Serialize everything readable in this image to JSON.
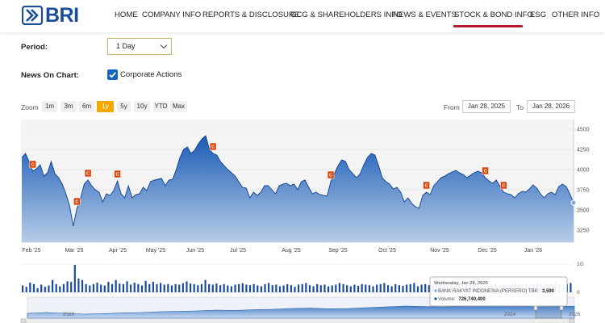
{
  "brand": {
    "name": "BRI",
    "color": "#1b4b9b"
  },
  "nav": {
    "items": [
      {
        "label": "HOME"
      },
      {
        "label": "COMPANY INFO"
      },
      {
        "label": "REPORTS & DISCLOSURE"
      },
      {
        "label": "GCG & SHAREHOLDERS INFO"
      },
      {
        "label": "NEWS & EVENTS"
      },
      {
        "label": "STOCK & BOND INFO",
        "active": true
      },
      {
        "label": "ESG"
      },
      {
        "label": "OTHER INFO"
      }
    ],
    "active_color": "#b71c2c"
  },
  "controls": {
    "period_label": "Period:",
    "period_value": "1 Day",
    "news_label": "News On Chart:",
    "corporate_actions_label": "Corporate Actions",
    "corporate_actions_checked": true
  },
  "zoom": {
    "label": "Zoom",
    "options": [
      "1m",
      "3m",
      "6m",
      "1y",
      "5y",
      "10y",
      "YTD",
      "Max"
    ],
    "active": "1y",
    "active_color": "#f6a800"
  },
  "range": {
    "from_label": "From",
    "from_value": "Jan 28, 2025",
    "to_label": "To",
    "to_value": "Jan 28, 2026"
  },
  "chart_data": {
    "type": "area",
    "y_ticks": [
      "4500",
      "4250",
      "4000",
      "3750",
      "3500",
      "3250"
    ],
    "ylim": [
      3250,
      4500
    ],
    "x_ticks": [
      "Feb '25",
      "Mar '25",
      "Apr '25",
      "May '25",
      "Jun '25",
      "Jul '25",
      "Aug '25",
      "Sep '25",
      "Oct '25",
      "Nov '25",
      "Dec '25",
      "Jan '26"
    ],
    "series": [
      {
        "values": [
          4150,
          4200,
          4100,
          3980,
          4010,
          4060,
          3920,
          3960,
          4100,
          3950,
          3900,
          3820,
          3700,
          3550,
          3300,
          3520,
          3650,
          3820,
          3870,
          3800,
          3750,
          3720,
          3600,
          3700,
          3680,
          3740,
          3860,
          3700,
          3650,
          3800,
          3650,
          3690,
          3700,
          3780,
          3740,
          3850,
          3870,
          3880,
          3890,
          3800,
          3870,
          3880,
          4000,
          4150,
          4250,
          4280,
          4200,
          4240,
          4320,
          4380,
          4420,
          4250,
          4200,
          4180,
          4100,
          4050,
          4000,
          3960,
          3920,
          3850,
          3780,
          3770,
          3650,
          3720,
          3680,
          3720,
          3800,
          3800,
          3750,
          3700,
          3800,
          3820,
          3830,
          3800,
          3820,
          3750,
          3850,
          3870,
          3780,
          3700,
          3720,
          3690,
          3680,
          3670,
          3850,
          3950,
          4050,
          4120,
          4100,
          4000,
          3950,
          3900,
          3950,
          4060,
          4150,
          4200,
          4180,
          4050,
          3900,
          3850,
          3820,
          3760,
          3780,
          3720,
          3600,
          3650,
          3580,
          3540,
          3520,
          3680,
          3720,
          3690,
          3800,
          3850,
          3900,
          3920,
          3950,
          3970,
          3990,
          3960,
          3940,
          3900,
          3930,
          3960,
          3980,
          3960,
          3900,
          3860,
          3830,
          3870,
          3790,
          3720,
          3700,
          3690,
          3650,
          3700,
          3730,
          3720,
          3760,
          3810,
          3770,
          3700,
          3650,
          3700,
          3720,
          3690,
          3790,
          3820,
          3790,
          3700,
          3590
        ]
      }
    ],
    "volume_series": [
      0.25,
      0.2,
      0.35,
      0.3,
      0.15,
      0.28,
      0.2,
      0.25,
      0.45,
      0.3,
      0.22,
      0.3,
      0.4,
      0.38,
      1.0,
      0.5,
      0.45,
      0.3,
      0.25,
      0.3,
      0.35,
      0.28,
      0.25,
      0.38,
      0.3,
      0.45,
      0.32,
      0.3,
      0.4,
      0.28,
      0.35,
      0.3,
      0.25,
      0.42,
      0.3,
      0.38,
      0.3,
      0.34,
      0.28,
      0.3,
      0.25,
      0.3,
      0.28,
      0.33,
      0.4,
      0.32,
      0.3,
      0.26,
      0.3,
      0.45,
      0.3,
      0.28,
      0.32,
      0.26,
      0.3,
      0.25,
      0.22,
      0.28,
      0.3,
      0.33,
      0.28,
      0.26,
      0.3,
      0.25,
      0.22,
      0.3,
      0.34,
      0.26,
      0.28,
      0.22,
      0.25,
      0.3,
      0.26,
      0.2,
      0.28,
      0.3,
      0.34,
      0.26,
      0.22,
      0.3,
      0.26,
      0.28,
      0.22,
      0.25,
      0.28,
      0.34,
      0.3,
      0.26,
      0.22,
      0.28,
      0.24,
      0.3,
      0.28,
      0.26,
      0.22,
      0.28,
      0.3,
      0.34,
      0.26,
      0.22,
      0.3,
      0.26,
      0.24,
      0.28,
      0.3,
      0.34,
      0.22,
      0.28,
      0.3,
      0.26,
      0.24,
      0.3,
      0.34,
      0.28,
      0.26,
      0.3,
      0.22,
      0.28,
      0.26,
      0.3,
      0.34,
      0.28,
      0.26,
      0.3,
      0.25,
      0.22,
      0.28,
      0.3,
      0.26,
      0.28,
      0.24,
      0.3,
      0.34,
      0.28,
      0.26,
      0.3,
      0.25,
      0.28,
      0.3,
      0.32,
      0.26,
      0.28,
      0.3,
      0.34,
      0.28,
      0.26,
      0.3,
      0.34
    ],
    "volume_ticks": [
      "1G",
      "0"
    ],
    "corporate_action_marker": "C",
    "corporate_actions_at": [
      3,
      15,
      18,
      26,
      52,
      84,
      110,
      126,
      131
    ],
    "navigator": {
      "labels": [
        "2020",
        "2024",
        "2026"
      ],
      "values": [
        0.3,
        0.35,
        0.3,
        0.25,
        0.28,
        0.32,
        0.35,
        0.4,
        0.42,
        0.45,
        0.5,
        0.48,
        0.52,
        0.55,
        0.6,
        0.62,
        0.58,
        0.6,
        0.65,
        0.7,
        0.75,
        0.72,
        0.7,
        0.74,
        0.78,
        0.8,
        0.76,
        0.7,
        0.72,
        0.74
      ]
    },
    "tooltip": {
      "date": "Wednesday, Jan 28, 2026",
      "series_label": "BANK RAKYAT INDONESIA (PERSERO) TBK:",
      "series_value": "3,590",
      "volume_label": "Volume:",
      "volume_value": "726,740,400"
    },
    "colors": {
      "area_top": "#1a5bb5",
      "area_bottom": "#a9c4e6",
      "line": "#0d3f8f",
      "marker": "#d9480f",
      "volume": "#1b4b9b"
    }
  }
}
